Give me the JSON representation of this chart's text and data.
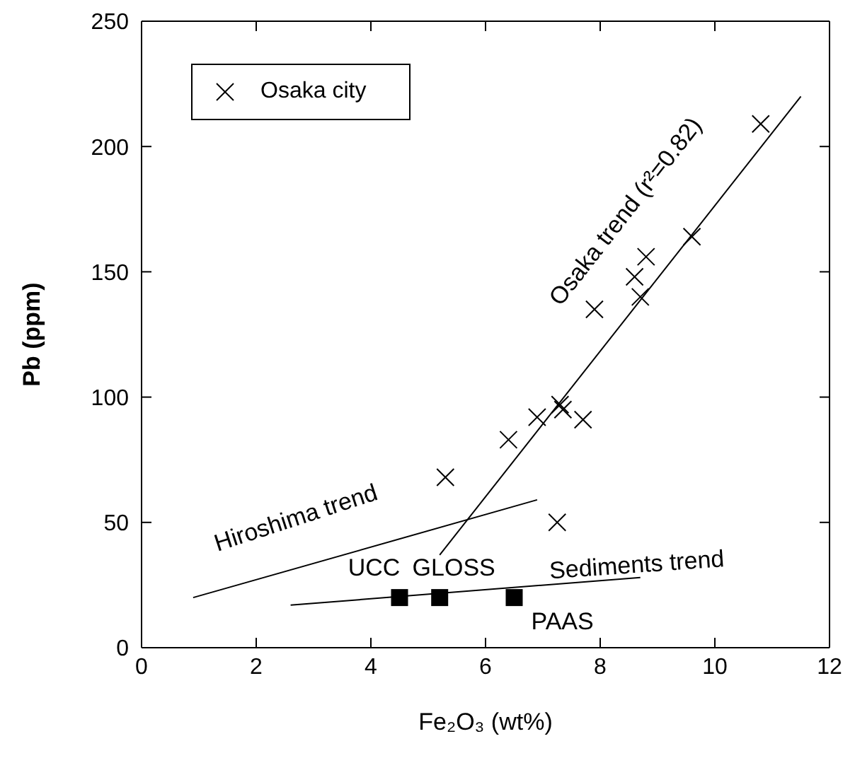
{
  "chart_data": {
    "type": "scatter",
    "xlabel": "Fe₂O₃ (wt%)",
    "ylabel": "Pb (ppm)",
    "xlim": [
      0,
      12
    ],
    "xticks": [
      0,
      2,
      4,
      6,
      8,
      10,
      12
    ],
    "ylim": [
      0,
      250
    ],
    "yticks": [
      0,
      50,
      100,
      150,
      200,
      250
    ],
    "legend": "top left",
    "series": [
      {
        "name": "Osaka city",
        "marker": "cross",
        "color": "#000000",
        "x": [
          5.3,
          6.4,
          6.9,
          7.3,
          7.35,
          7.7,
          7.25,
          7.9,
          8.6,
          8.8,
          8.7,
          9.6,
          10.8
        ],
        "values": [
          68,
          83,
          92,
          97,
          95,
          91,
          50,
          135,
          148,
          156,
          140,
          164,
          209
        ]
      },
      {
        "marker": "square",
        "color": "#000000",
        "x": [
          4.5,
          5.2,
          6.5
        ],
        "values": [
          20,
          20,
          20
        ]
      },
      {
        "type": "line",
        "marker": "none",
        "color": "#000000",
        "x": [
          5.2,
          11.5
        ],
        "values": [
          37,
          220
        ]
      },
      {
        "type": "line",
        "marker": "none",
        "color": "#000000",
        "x": [
          0.9,
          6.9
        ],
        "values": [
          20,
          59
        ]
      },
      {
        "type": "line",
        "marker": "none",
        "color": "#000000",
        "x": [
          2.6,
          8.7
        ],
        "values": [
          17,
          28
        ]
      }
    ],
    "annotations": [
      "Osaka trend (r²=0.82)",
      "Hiroshima trend",
      "Sediments trend",
      {
        "text": "UCC",
        "x": 4.5,
        "y": 20
      },
      {
        "text": "GLOSS",
        "x": 5.2,
        "y": 20
      },
      {
        "text": "PAAS",
        "x": 6.5,
        "y": 20
      }
    ]
  }
}
